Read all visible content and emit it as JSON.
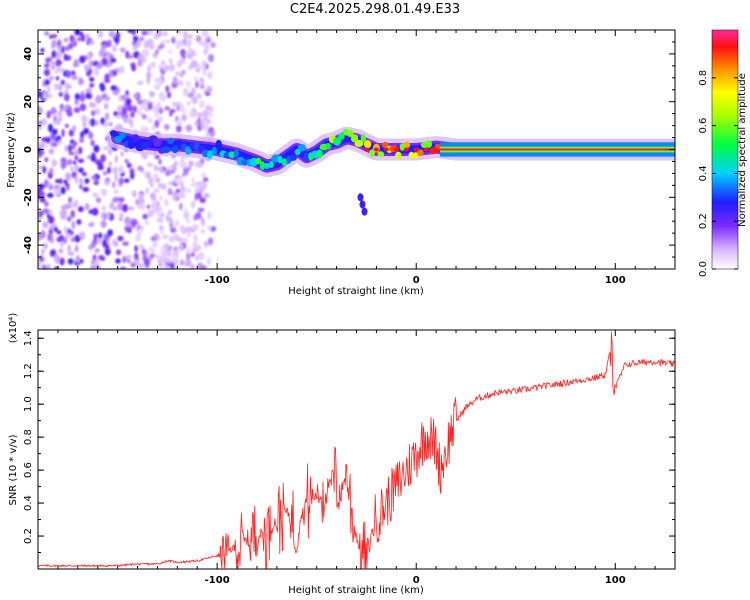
{
  "title": "C2E4.2025.298.01.49.E33",
  "chart_data": [
    {
      "type": "heatmap",
      "title": "C2E4.2025.298.01.49.E33",
      "xlabel": "Height of straight line (km)",
      "ylabel": "Frequency (Hz)",
      "xlim": [
        -190,
        130
      ],
      "ylim": [
        -50,
        50
      ],
      "xticks": [
        -100,
        0,
        100
      ],
      "yticks": [
        -40,
        -20,
        0,
        20,
        40
      ],
      "colorbar": {
        "label": "Normalized spectral amplitude",
        "range": [
          0,
          1
        ],
        "ticks": [
          "0.0",
          "0.2",
          "0.4",
          "0.6",
          "0.8"
        ]
      },
      "ridge": {
        "x": [
          -150,
          -140,
          -130,
          -120,
          -110,
          -100,
          -90,
          -80,
          -75,
          -70,
          -65,
          -60,
          -55,
          -50,
          -45,
          -40,
          -35,
          -30,
          -25,
          -20,
          -10,
          0,
          10,
          20,
          40,
          60,
          80,
          100,
          130
        ],
        "freq": [
          5,
          3,
          2,
          2,
          1,
          0,
          -2,
          -5,
          -7,
          -6,
          -3,
          0,
          -3,
          -1,
          2,
          3,
          5,
          4,
          2,
          0,
          0,
          0,
          1,
          0,
          0,
          0,
          0,
          0,
          0
        ],
        "intensity": [
          0.4,
          0.35,
          0.3,
          0.35,
          0.4,
          0.45,
          0.5,
          0.55,
          0.6,
          0.55,
          0.5,
          0.45,
          0.5,
          0.55,
          0.6,
          0.7,
          0.75,
          0.8,
          0.85,
          0.9,
          0.95,
          0.95,
          0.95,
          1.0,
          0.98,
          0.97,
          0.97,
          0.98,
          0.97
        ]
      },
      "secondary_feature": {
        "x": [
          -28,
          -27,
          -26
        ],
        "freq": [
          -20,
          -23,
          -26
        ]
      }
    },
    {
      "type": "line",
      "xlabel": "Height of straight line (km)",
      "ylabel": "SNR (10 * v/v)",
      "y_scale_label": "(x10⁴)",
      "xlim": [
        -190,
        130
      ],
      "ylim": [
        0,
        1.45
      ],
      "xticks": [
        -100,
        0,
        100
      ],
      "yticks": [
        0.2,
        0.4,
        0.6,
        0.8,
        1.0,
        1.2,
        1.4
      ],
      "ytick_labels": [
        "0.2",
        "0.4",
        "0.6",
        "0.8",
        "1.0",
        "1.2",
        "1.4"
      ],
      "series": [
        {
          "name": "SNR",
          "color": "#ff2020",
          "x": [
            -190,
            -170,
            -150,
            -140,
            -130,
            -125,
            -120,
            -110,
            -100,
            -95,
            -90,
            -85,
            -80,
            -75,
            -70,
            -65,
            -60,
            -55,
            -50,
            -45,
            -40,
            -38,
            -35,
            -32,
            -30,
            -28,
            -25,
            -22,
            -20,
            -15,
            -10,
            -5,
            0,
            5,
            10,
            12,
            15,
            18,
            20,
            25,
            30,
            40,
            50,
            60,
            70,
            80,
            90,
            95,
            98,
            100,
            105,
            110,
            120,
            130
          ],
          "y": [
            0.02,
            0.02,
            0.02,
            0.03,
            0.03,
            0.05,
            0.04,
            0.05,
            0.08,
            0.1,
            0.14,
            0.18,
            0.2,
            0.22,
            0.3,
            0.35,
            0.25,
            0.4,
            0.45,
            0.5,
            0.55,
            0.45,
            0.6,
            0.3,
            0.2,
            0.1,
            0.02,
            0.25,
            0.3,
            0.4,
            0.5,
            0.6,
            0.7,
            0.82,
            0.75,
            0.6,
            0.72,
            0.85,
            0.9,
            0.98,
            1.03,
            1.07,
            1.08,
            1.1,
            1.12,
            1.14,
            1.16,
            1.18,
            1.35,
            1.1,
            1.24,
            1.25,
            1.26,
            1.24
          ]
        }
      ]
    }
  ]
}
